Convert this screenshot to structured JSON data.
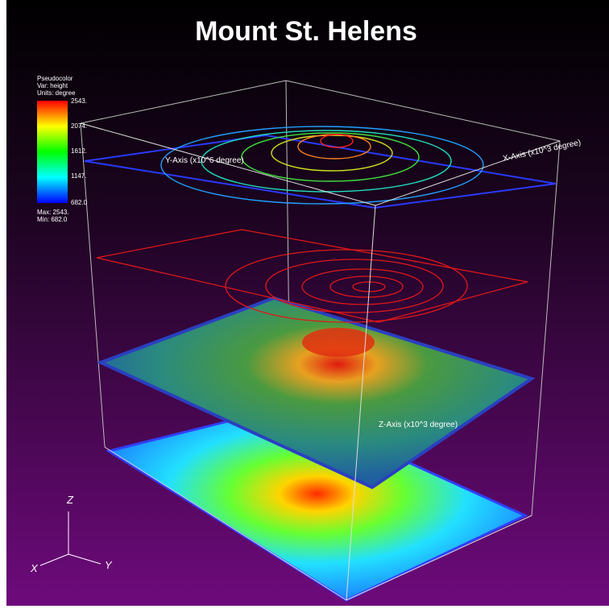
{
  "title": "Mount St. Helens",
  "legend": {
    "lines": [
      "Pseudocolor",
      "Var: height",
      "Units: degree"
    ],
    "ticks": [
      "2543.",
      "2074.",
      "1612.",
      "1147.",
      "682.0"
    ],
    "max": "Max: 2543.",
    "min": "Min: 682.0"
  },
  "axes": {
    "y_label": "Y-Axis (x10^6 degree)",
    "x_label": "X-Axis (x10^3 degree)",
    "z_label": "Z-Axis (x10^3 degree)"
  },
  "triad": {
    "x": "X",
    "y": "Y",
    "z": "Z"
  }
}
